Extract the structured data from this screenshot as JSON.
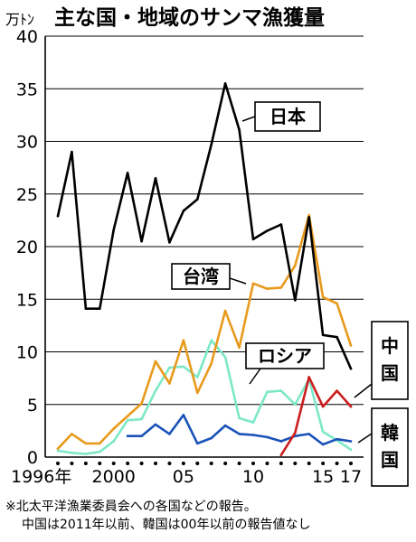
{
  "chart_data": {
    "type": "line",
    "title": "主な国・地域のサンマ漁獲量",
    "ylabel": "万ﾄﾝ",
    "ylim": [
      0,
      40
    ],
    "yticks": [
      0,
      5,
      10,
      15,
      20,
      25,
      30,
      35,
      40
    ],
    "xlim": [
      1996,
      2017
    ],
    "xtick_labels": [
      {
        "x": 1996,
        "label": "1996年"
      },
      {
        "x": 2000,
        "label": "2000"
      },
      {
        "x": 2005,
        "label": "05"
      },
      {
        "x": 2010,
        "label": "10"
      },
      {
        "x": 2015,
        "label": "15"
      },
      {
        "x": 2017,
        "label": "17"
      }
    ],
    "grid": true,
    "series": [
      {
        "name": "日本",
        "color": "#000000",
        "x": [
          1996,
          1997,
          1998,
          1999,
          2000,
          2001,
          2002,
          2003,
          2004,
          2005,
          2006,
          2007,
          2008,
          2009,
          2010,
          2011,
          2012,
          2013,
          2014,
          2015,
          2016,
          2017
        ],
        "y": [
          22.9,
          29.0,
          14.1,
          14.1,
          21.6,
          27.0,
          20.5,
          26.5,
          20.4,
          23.4,
          24.5,
          29.7,
          35.5,
          31.1,
          20.7,
          21.5,
          22.1,
          14.9,
          22.8,
          11.6,
          11.4,
          8.4
        ]
      },
      {
        "name": "台湾",
        "color": "#e89a1c",
        "x": [
          1996,
          1997,
          1998,
          1999,
          2000,
          2001,
          2002,
          2003,
          2004,
          2005,
          2006,
          2007,
          2008,
          2009,
          2010,
          2011,
          2012,
          2013,
          2014,
          2015,
          2016,
          2017
        ],
        "y": [
          0.8,
          2.2,
          1.3,
          1.3,
          2.7,
          3.9,
          5.1,
          9.1,
          7.0,
          11.1,
          6.1,
          8.9,
          13.9,
          10.4,
          16.5,
          16.0,
          16.1,
          18.2,
          23.0,
          15.2,
          14.6,
          10.6
        ]
      },
      {
        "name": "ロシア",
        "color": "#7de8c8",
        "x": [
          1996,
          1997,
          1998,
          1999,
          2000,
          2001,
          2002,
          2003,
          2004,
          2005,
          2006,
          2007,
          2008,
          2009,
          2010,
          2011,
          2012,
          2013,
          2014,
          2015,
          2016,
          2017
        ],
        "y": [
          0.6,
          0.4,
          0.3,
          0.5,
          1.5,
          3.5,
          3.6,
          6.3,
          8.5,
          8.6,
          7.6,
          11.1,
          9.5,
          3.7,
          3.3,
          6.2,
          6.3,
          5.0,
          7.4,
          2.4,
          1.6,
          0.7
        ]
      },
      {
        "name": "中国",
        "color": "#cc1e1e",
        "x": [
          2012,
          2013,
          2014,
          2015,
          2016,
          2017
        ],
        "y": [
          0.2,
          2.3,
          7.6,
          4.8,
          6.3,
          4.8
        ]
      },
      {
        "name": "韓国",
        "color": "#1a52b8",
        "x": [
          2001,
          2002,
          2003,
          2004,
          2005,
          2006,
          2007,
          2008,
          2009,
          2010,
          2011,
          2012,
          2013,
          2014,
          2015,
          2016,
          2017
        ],
        "y": [
          2.0,
          2.0,
          3.1,
          2.2,
          4.0,
          1.3,
          1.8,
          3.0,
          2.2,
          2.1,
          1.9,
          1.5,
          2.0,
          2.2,
          1.2,
          1.7,
          1.5
        ]
      }
    ]
  },
  "footnote": {
    "line1": "※北太平洋漁業委員会への各国などの報告。",
    "line2": "中国は2011年以前、韓国は00年以前の報告値なし"
  }
}
